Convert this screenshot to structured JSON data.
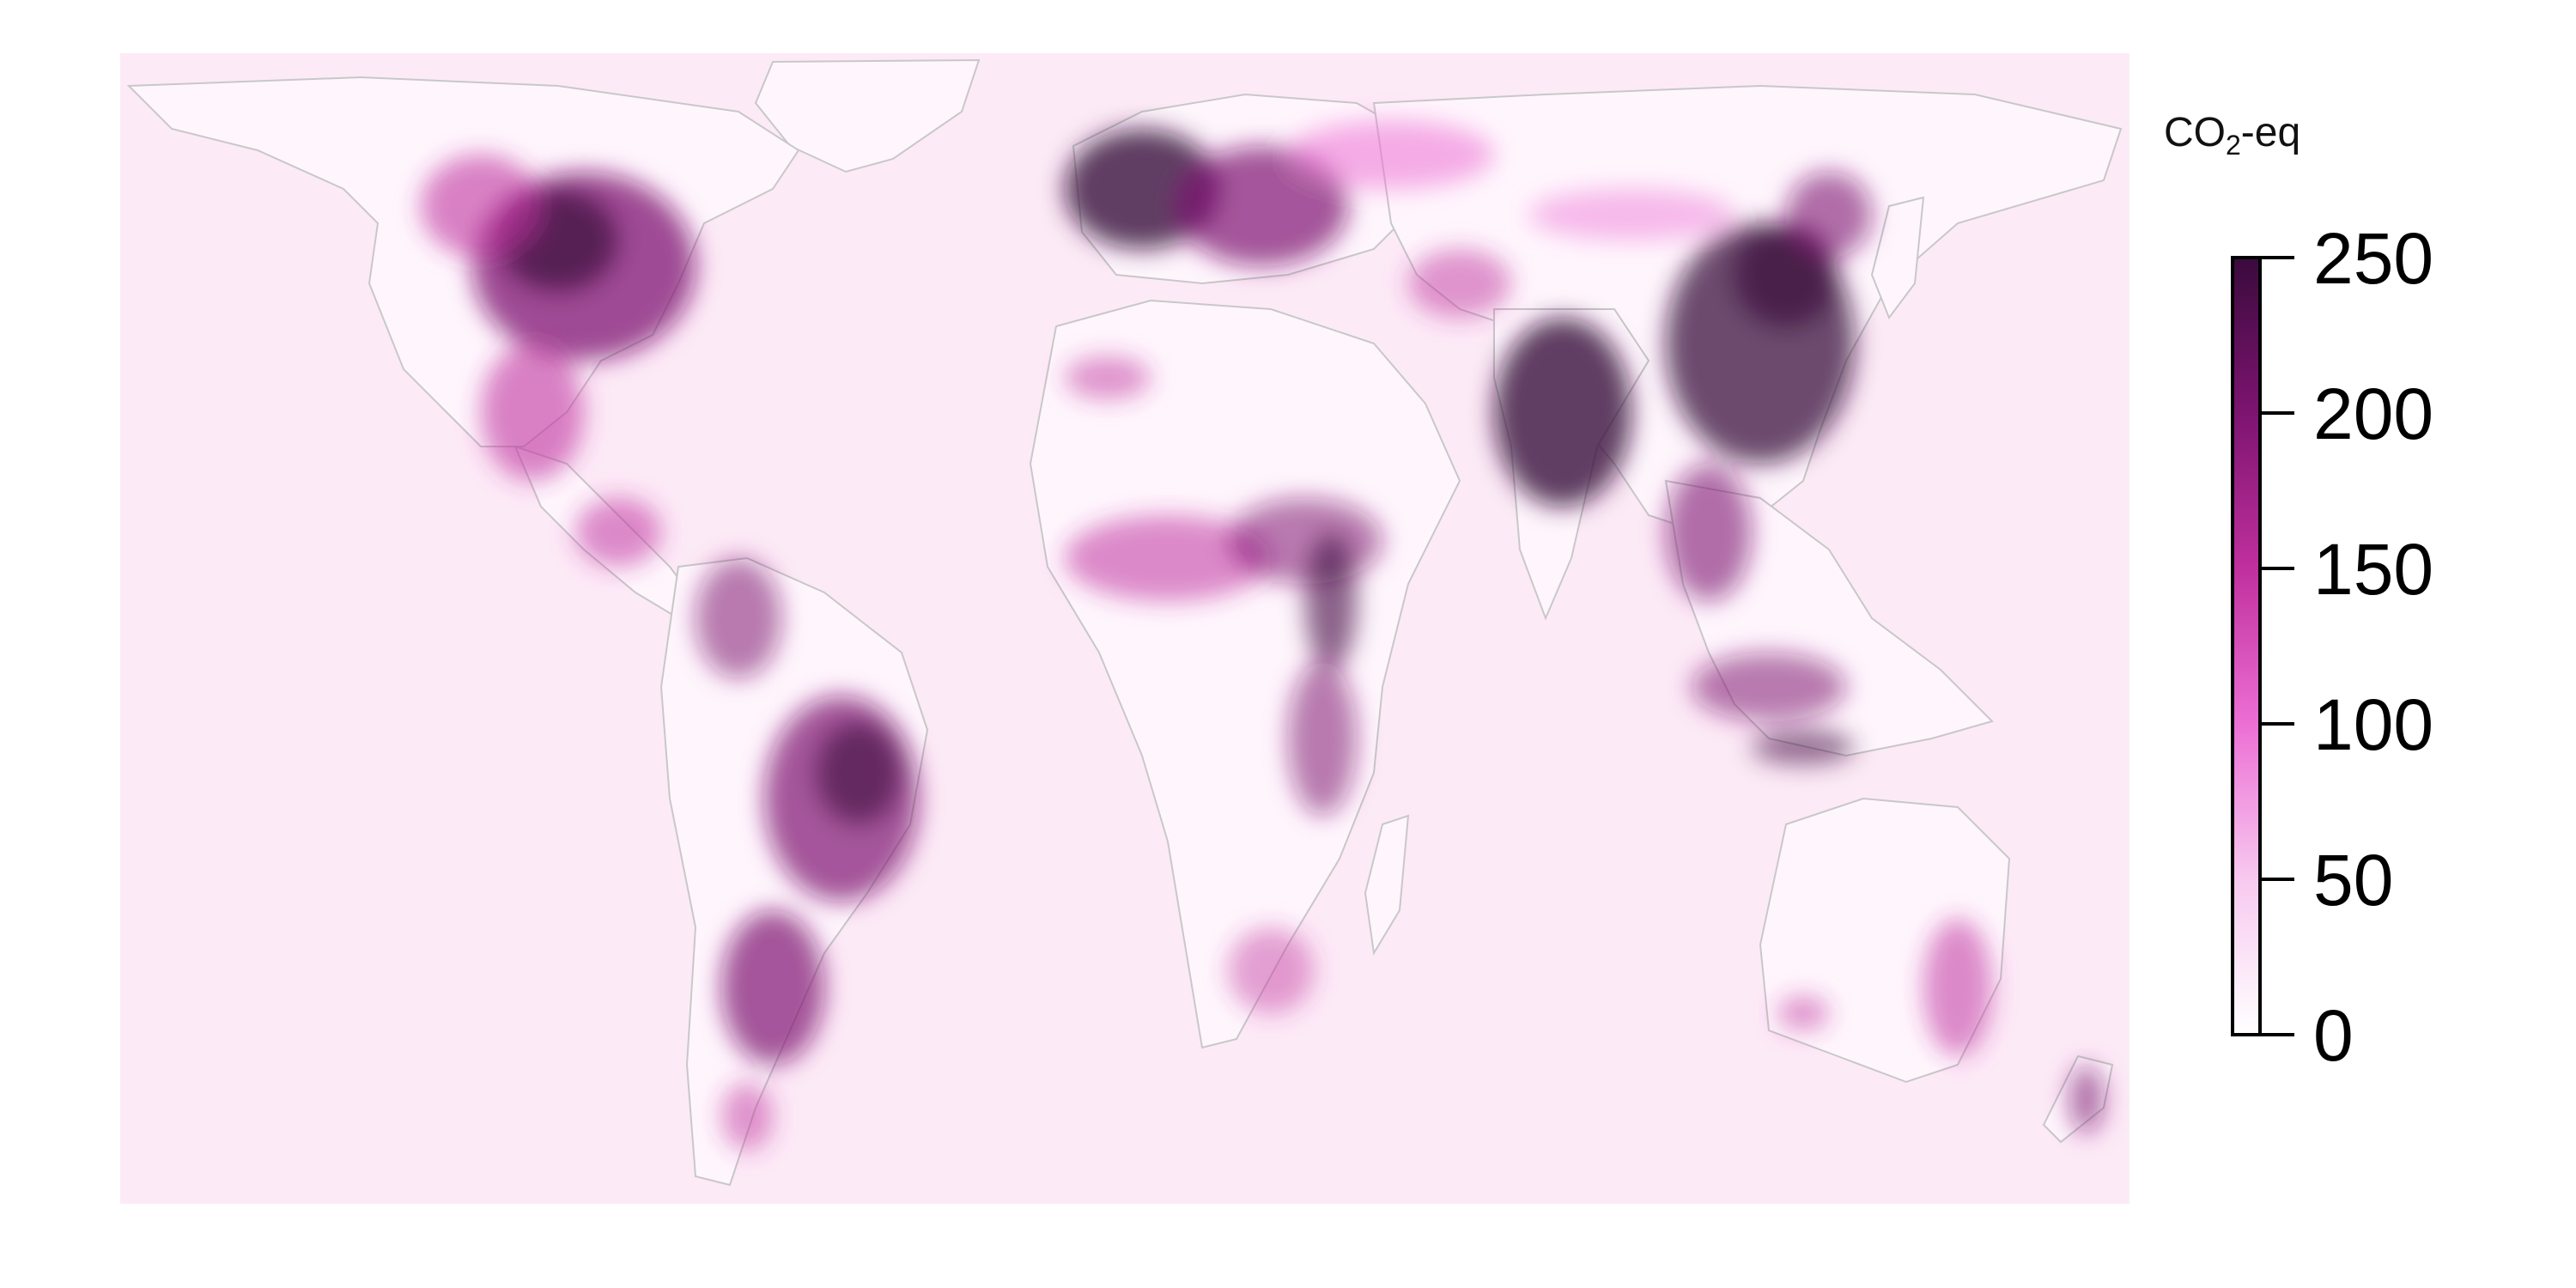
{
  "legend": {
    "title_main": "CO",
    "title_sub": "2",
    "title_suffix": "-eq",
    "ticks": [
      "0",
      "50",
      "100",
      "150",
      "200",
      "250"
    ],
    "tick_values": [
      0,
      50,
      100,
      150,
      200,
      250
    ],
    "range": [
      0,
      250
    ],
    "colors": [
      "#ffffff",
      "#f7c9ef",
      "#ec6fd4",
      "#c0309e",
      "#7d1470",
      "#3a0a3c"
    ]
  },
  "map": {
    "projection": "equirectangular",
    "ocean_color": "#fde9f6",
    "land_color": "#fff4fc",
    "border_color": "#bdbdbd"
  }
}
